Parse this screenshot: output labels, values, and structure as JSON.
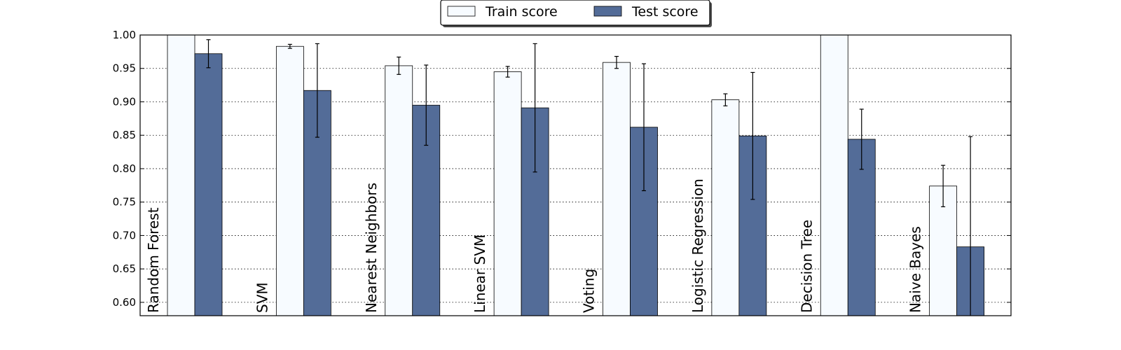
{
  "chart_data": {
    "type": "bar",
    "categories": [
      "Random Forest",
      "SVM",
      "Nearest Neighbors",
      "Linear SVM",
      "Voting",
      "Logistic Regression",
      "Decision Tree",
      "Naive Bayes"
    ],
    "series": [
      {
        "name": "Train score",
        "color": "#f7fbff",
        "values": [
          1.0,
          0.983,
          0.954,
          0.945,
          0.959,
          0.903,
          1.0,
          0.774
        ],
        "errors": [
          0.0,
          0.003,
          0.013,
          0.008,
          0.009,
          0.009,
          0.0,
          0.031
        ]
      },
      {
        "name": "Test score",
        "color": "#536c98",
        "values": [
          0.972,
          0.917,
          0.895,
          0.891,
          0.862,
          0.849,
          0.844,
          0.683
        ],
        "errors": [
          0.021,
          0.07,
          0.06,
          0.096,
          0.095,
          0.095,
          0.045,
          0.165
        ]
      }
    ],
    "yticks": [
      "0.60",
      "0.65",
      "0.70",
      "0.75",
      "0.80",
      "0.85",
      "0.90",
      "0.95",
      "1.00"
    ],
    "ylim": [
      0.58,
      1.0
    ],
    "grid": "horizontal dotted",
    "legend_position": "top-center"
  }
}
